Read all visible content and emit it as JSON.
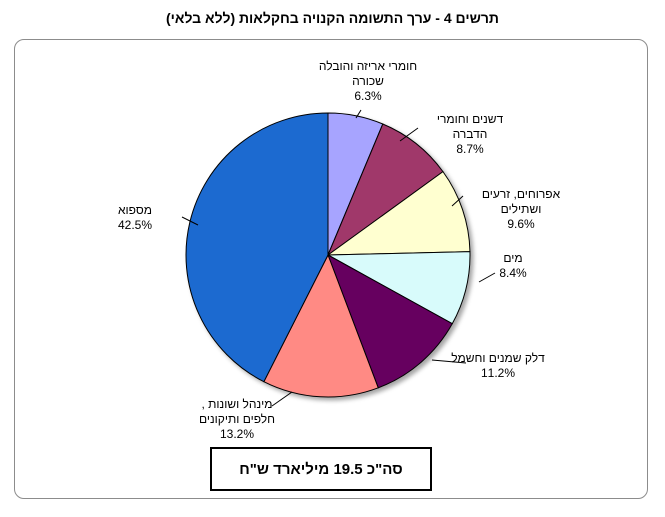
{
  "chart_data": {
    "type": "pie",
    "title": "תרשים 4 - ערך התשומה הקנויה בחקלאות (ללא בלאי)",
    "total_label": "סה\"כ 19.5 מיליארד ש\"ח",
    "slices": [
      {
        "label_lines": [
          "חומרי אריזה והובלה",
          "שכורה"
        ],
        "value": 6.3,
        "value_label": "6.3%",
        "color": "#a7a4ff"
      },
      {
        "label_lines": [
          "דשנים וחומרי",
          "הדברה"
        ],
        "value": 8.7,
        "value_label": "8.7%",
        "color": "#a0386a"
      },
      {
        "label_lines": [
          "אפרוחים, זרעים",
          "ושתילים"
        ],
        "value": 9.6,
        "value_label": "9.6%",
        "color": "#ffffd0"
      },
      {
        "label_lines": [
          "מים"
        ],
        "value": 8.4,
        "value_label": "8.4%",
        "color": "#d8fbfb"
      },
      {
        "label_lines": [
          "דלק שמנים וחשמל"
        ],
        "value": 11.2,
        "value_label": "11.2%",
        "color": "#66005f"
      },
      {
        "label_lines": [
          "מינהל ושונות ,",
          "חלפים ותיקונים"
        ],
        "value": 13.2,
        "value_label": "13.2%",
        "color": "#ff8a84"
      },
      {
        "label_lines": [
          "מספוא"
        ],
        "value": 42.5,
        "value_label": "42.5%",
        "color": "#1f6bd0"
      }
    ]
  }
}
